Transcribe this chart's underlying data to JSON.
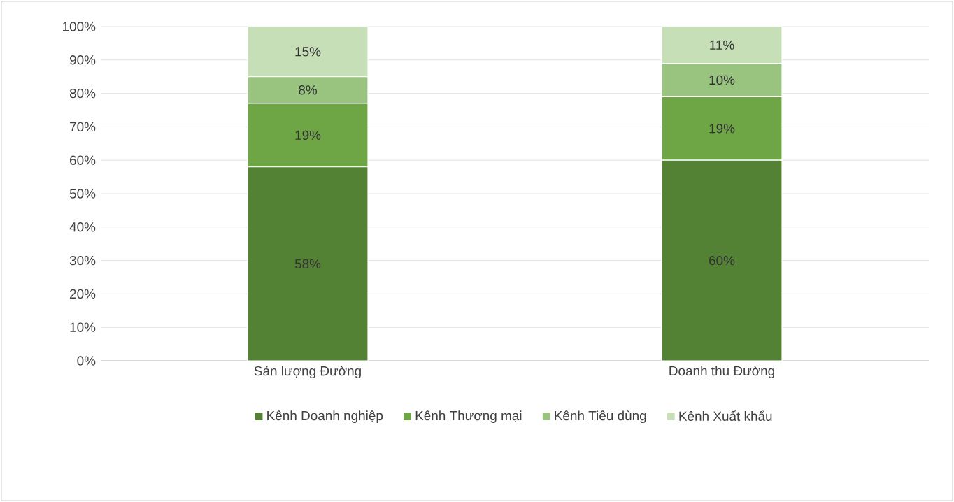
{
  "chart_data": {
    "type": "bar",
    "stacked": true,
    "categories": [
      "Sản lượng Đường",
      "Doanh thu Đường"
    ],
    "series": [
      {
        "name": "Kênh Doanh nghiệp",
        "color": "#548235",
        "values": [
          58,
          60
        ],
        "value_labels": [
          "58%",
          "60%"
        ]
      },
      {
        "name": "Kênh Thương mại",
        "color": "#6ea646",
        "values": [
          19,
          19
        ],
        "value_labels": [
          "19%",
          "19%"
        ]
      },
      {
        "name": "Kênh Tiêu dùng",
        "color": "#98c47f",
        "values": [
          8,
          10
        ],
        "value_labels": [
          "8%",
          "10%"
        ]
      },
      {
        "name": "Kênh Xuất khẩu",
        "color": "#c6dfb6",
        "values": [
          15,
          11
        ],
        "value_labels": [
          "15%",
          "11%"
        ]
      }
    ],
    "ylim": [
      0,
      100
    ],
    "yticks": [
      {
        "value": 0,
        "label": "0%"
      },
      {
        "value": 10,
        "label": "10%"
      },
      {
        "value": 20,
        "label": "20%"
      },
      {
        "value": 30,
        "label": "30%"
      },
      {
        "value": 40,
        "label": "40%"
      },
      {
        "value": 50,
        "label": "50%"
      },
      {
        "value": 60,
        "label": "60%"
      },
      {
        "value": 70,
        "label": "70%"
      },
      {
        "value": 80,
        "label": "80%"
      },
      {
        "value": 90,
        "label": "90%"
      },
      {
        "value": 100,
        "label": "100%"
      }
    ],
    "grid": "y",
    "legend": "bottom"
  }
}
